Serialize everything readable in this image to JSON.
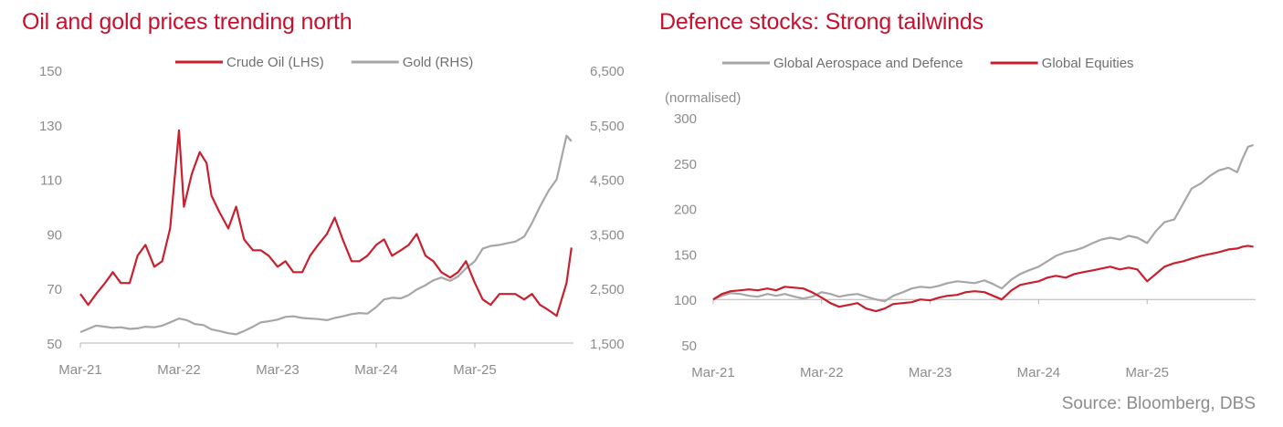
{
  "source": "Source: Bloomberg, DBS",
  "colors": {
    "title": "#c8102e",
    "red_series": "#c8202e",
    "grey_series": "#a6a6a6",
    "axis": "#b4b4b4",
    "tick_text": "#8c8c8c"
  },
  "chart_data": [
    {
      "type": "line",
      "title": "Oil and gold prices trending north",
      "x_tick_labels": [
        "Mar-21",
        "Mar-22",
        "Mar-23",
        "Mar-24",
        "Mar-25"
      ],
      "x_ticks": [
        2021.17,
        2022.17,
        2023.17,
        2024.17,
        2025.17
      ],
      "xlim": [
        2021.17,
        2026.17
      ],
      "ylim_left": [
        50,
        150
      ],
      "y_ticks_left": [
        50,
        70,
        90,
        110,
        130,
        150
      ],
      "ylim_right": [
        1500,
        6500
      ],
      "y_ticks_right": [
        "1,500",
        "2,500",
        "3,500",
        "4,500",
        "5,500",
        "6,500"
      ],
      "y_tick_values_right": [
        1500,
        2500,
        3500,
        4500,
        5500,
        6500
      ],
      "legend_position": "top-center",
      "series": [
        {
          "name": "Crude Oil (LHS)",
          "axis": "left",
          "color": "#c8202e",
          "x": [
            2021.17,
            2021.25,
            2021.33,
            2021.42,
            2021.5,
            2021.58,
            2021.67,
            2021.75,
            2021.83,
            2021.92,
            2022.0,
            2022.08,
            2022.17,
            2022.22,
            2022.3,
            2022.38,
            2022.45,
            2022.5,
            2022.58,
            2022.67,
            2022.75,
            2022.83,
            2022.92,
            2023.0,
            2023.08,
            2023.17,
            2023.25,
            2023.33,
            2023.42,
            2023.5,
            2023.58,
            2023.67,
            2023.75,
            2023.83,
            2023.92,
            2024.0,
            2024.08,
            2024.17,
            2024.25,
            2024.33,
            2024.42,
            2024.5,
            2024.58,
            2024.67,
            2024.75,
            2024.83,
            2024.92,
            2025.0,
            2025.08,
            2025.17,
            2025.25,
            2025.33,
            2025.42,
            2025.5,
            2025.58,
            2025.67,
            2025.75,
            2025.83,
            2025.92,
            2026.0,
            2026.05,
            2026.1,
            2026.15
          ],
          "values": [
            68,
            64,
            68,
            72,
            76,
            72,
            72,
            82,
            86,
            78,
            80,
            92,
            128,
            100,
            112,
            120,
            116,
            104,
            98,
            92,
            100,
            88,
            84,
            84,
            82,
            78,
            80,
            76,
            76,
            82,
            86,
            90,
            96,
            88,
            80,
            80,
            82,
            86,
            88,
            82,
            84,
            86,
            90,
            82,
            80,
            76,
            74,
            76,
            80,
            72,
            66,
            64,
            68,
            68,
            68,
            66,
            68,
            64,
            62,
            60,
            66,
            72,
            85
          ]
        },
        {
          "name": "Gold (RHS)",
          "axis": "right",
          "color": "#a6a6a6",
          "x": [
            2021.17,
            2021.25,
            2021.33,
            2021.42,
            2021.5,
            2021.58,
            2021.67,
            2021.75,
            2021.83,
            2021.92,
            2022.0,
            2022.08,
            2022.17,
            2022.25,
            2022.33,
            2022.42,
            2022.5,
            2022.58,
            2022.67,
            2022.75,
            2022.83,
            2022.92,
            2023.0,
            2023.08,
            2023.17,
            2023.25,
            2023.33,
            2023.42,
            2023.5,
            2023.58,
            2023.67,
            2023.75,
            2023.83,
            2023.92,
            2024.0,
            2024.08,
            2024.17,
            2024.25,
            2024.33,
            2024.42,
            2024.5,
            2024.58,
            2024.67,
            2024.75,
            2024.83,
            2024.92,
            2025.0,
            2025.08,
            2025.17,
            2025.25,
            2025.33,
            2025.42,
            2025.5,
            2025.58,
            2025.67,
            2025.75,
            2025.83,
            2025.92,
            2026.0,
            2026.05,
            2026.1,
            2026.15
          ],
          "values": [
            1700,
            1760,
            1820,
            1800,
            1780,
            1790,
            1760,
            1770,
            1800,
            1790,
            1820,
            1880,
            1950,
            1920,
            1850,
            1830,
            1750,
            1720,
            1680,
            1660,
            1720,
            1800,
            1880,
            1900,
            1930,
            1980,
            1990,
            1960,
            1950,
            1940,
            1920,
            1960,
            1990,
            2030,
            2050,
            2040,
            2160,
            2300,
            2330,
            2320,
            2380,
            2480,
            2560,
            2650,
            2700,
            2640,
            2720,
            2870,
            3000,
            3230,
            3280,
            3300,
            3330,
            3360,
            3450,
            3700,
            4000,
            4300,
            4500,
            4900,
            5300,
            5200
          ]
        }
      ]
    },
    {
      "type": "line",
      "title": "Defence stocks: Strong tailwinds",
      "ylabel": "(normalised)",
      "x_tick_labels": [
        "Mar-21",
        "Mar-22",
        "Mar-23",
        "Mar-24",
        "Mar-25"
      ],
      "x_ticks": [
        2021.17,
        2022.17,
        2023.17,
        2024.17,
        2025.17
      ],
      "xlim": [
        2021.17,
        2026.17
      ],
      "ylim": [
        50,
        300
      ],
      "y_ticks": [
        50,
        100,
        150,
        200,
        250,
        300
      ],
      "legend_position": "top-center",
      "series": [
        {
          "name": "Global Aerospace and Defence",
          "color": "#a6a6a6",
          "x": [
            2021.17,
            2021.25,
            2021.33,
            2021.42,
            2021.5,
            2021.58,
            2021.67,
            2021.75,
            2021.83,
            2021.92,
            2022.0,
            2022.08,
            2022.17,
            2022.25,
            2022.33,
            2022.42,
            2022.5,
            2022.58,
            2022.67,
            2022.75,
            2022.83,
            2022.92,
            2023.0,
            2023.08,
            2023.17,
            2023.25,
            2023.33,
            2023.42,
            2023.5,
            2023.58,
            2023.67,
            2023.75,
            2023.83,
            2023.92,
            2024.0,
            2024.08,
            2024.17,
            2024.25,
            2024.33,
            2024.42,
            2024.5,
            2024.58,
            2024.67,
            2024.75,
            2024.83,
            2024.92,
            2025.0,
            2025.08,
            2025.17,
            2025.25,
            2025.33,
            2025.42,
            2025.5,
            2025.58,
            2025.67,
            2025.75,
            2025.83,
            2025.92,
            2026.0,
            2026.05,
            2026.1,
            2026.15
          ],
          "values": [
            100,
            104,
            107,
            106,
            104,
            103,
            106,
            104,
            106,
            103,
            101,
            103,
            108,
            106,
            103,
            105,
            106,
            103,
            100,
            98,
            104,
            108,
            112,
            114,
            113,
            115,
            118,
            120,
            119,
            118,
            121,
            117,
            112,
            122,
            128,
            132,
            136,
            142,
            148,
            152,
            154,
            157,
            162,
            166,
            168,
            166,
            170,
            168,
            162,
            175,
            185,
            188,
            205,
            222,
            228,
            236,
            242,
            245,
            240,
            255,
            268,
            270
          ]
        },
        {
          "name": "Global Equities",
          "color": "#c8202e",
          "x": [
            2021.17,
            2021.25,
            2021.33,
            2021.42,
            2021.5,
            2021.58,
            2021.67,
            2021.75,
            2021.83,
            2021.92,
            2022.0,
            2022.08,
            2022.17,
            2022.25,
            2022.33,
            2022.42,
            2022.5,
            2022.58,
            2022.67,
            2022.75,
            2022.83,
            2022.92,
            2023.0,
            2023.08,
            2023.17,
            2023.25,
            2023.33,
            2023.42,
            2023.5,
            2023.58,
            2023.67,
            2023.75,
            2023.83,
            2023.92,
            2024.0,
            2024.08,
            2024.17,
            2024.25,
            2024.33,
            2024.42,
            2024.5,
            2024.58,
            2024.67,
            2024.75,
            2024.83,
            2024.92,
            2025.0,
            2025.08,
            2025.17,
            2025.25,
            2025.33,
            2025.42,
            2025.5,
            2025.58,
            2025.67,
            2025.75,
            2025.83,
            2025.92,
            2026.0,
            2026.05,
            2026.1,
            2026.15
          ],
          "values": [
            100,
            106,
            109,
            110,
            111,
            110,
            112,
            110,
            114,
            113,
            112,
            108,
            102,
            96,
            92,
            94,
            96,
            90,
            87,
            90,
            95,
            96,
            97,
            100,
            99,
            102,
            104,
            105,
            108,
            109,
            108,
            104,
            100,
            110,
            116,
            118,
            120,
            124,
            126,
            124,
            128,
            130,
            132,
            134,
            136,
            133,
            135,
            133,
            120,
            128,
            136,
            140,
            142,
            145,
            148,
            150,
            152,
            155,
            156,
            158,
            159,
            158
          ]
        }
      ]
    }
  ]
}
